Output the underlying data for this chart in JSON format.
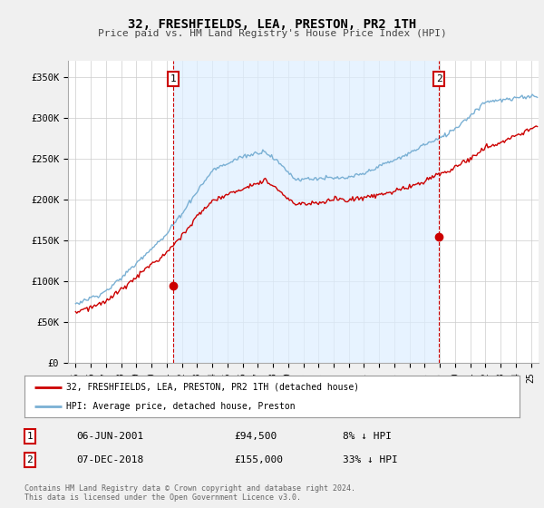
{
  "title": "32, FRESHFIELDS, LEA, PRESTON, PR2 1TH",
  "subtitle": "Price paid vs. HM Land Registry's House Price Index (HPI)",
  "ylabel_ticks": [
    "£0",
    "£50K",
    "£100K",
    "£150K",
    "£200K",
    "£250K",
    "£300K",
    "£350K"
  ],
  "ytick_vals": [
    0,
    50000,
    100000,
    150000,
    200000,
    250000,
    300000,
    350000
  ],
  "ylim": [
    0,
    370000
  ],
  "xlim_start": 1994.5,
  "xlim_end": 2025.5,
  "hpi_color": "#7ab0d4",
  "price_color": "#cc0000",
  "shade_color": "#ddeeff",
  "marker1_date": 2001.42,
  "marker1_price": 94500,
  "marker1_label": "1",
  "marker2_date": 2018.93,
  "marker2_price": 155000,
  "marker2_label": "2",
  "legend_line1": "32, FRESHFIELDS, LEA, PRESTON, PR2 1TH (detached house)",
  "legend_line2": "HPI: Average price, detached house, Preston",
  "table_row1_num": "1",
  "table_row1_date": "06-JUN-2001",
  "table_row1_price": "£94,500",
  "table_row1_hpi": "8% ↓ HPI",
  "table_row2_num": "2",
  "table_row2_date": "07-DEC-2018",
  "table_row2_price": "£155,000",
  "table_row2_hpi": "33% ↓ HPI",
  "footer": "Contains HM Land Registry data © Crown copyright and database right 2024.\nThis data is licensed under the Open Government Licence v3.0.",
  "bg_color": "#f0f0f0",
  "plot_bg_color": "#ffffff"
}
